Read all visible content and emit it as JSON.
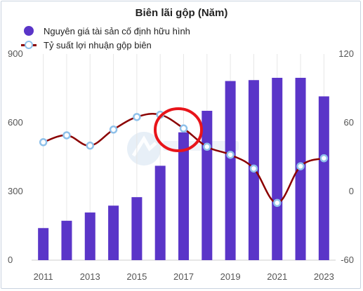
{
  "chart_data": {
    "type": "bar",
    "title": "Biên lãi gộp (Năm)",
    "categories": [
      "2011",
      "2012",
      "2013",
      "2014",
      "2015",
      "2016",
      "2017",
      "2018",
      "2019",
      "2020",
      "2021",
      "2022",
      "2023"
    ],
    "x_tick_labels": [
      "2011",
      "2013",
      "2015",
      "2017",
      "2019",
      "2021",
      "2023"
    ],
    "series": [
      {
        "name": "Nguyên giá tài sản cố định hữu hình",
        "type": "bar",
        "axis": "left",
        "color": "#5a35c8",
        "values": [
          140,
          172,
          208,
          238,
          275,
          412,
          558,
          652,
          782,
          786,
          796,
          796,
          715
        ]
      },
      {
        "name": "Tỷ suất lợi nhuận gộp biên",
        "type": "line",
        "axis": "right",
        "color": "#8b0000",
        "marker_color": "#8fc1ea",
        "values": [
          43,
          49,
          40,
          54,
          65,
          67,
          55,
          39,
          32,
          20,
          -10,
          22,
          29
        ]
      }
    ],
    "y_left": {
      "ylim": [
        0,
        900
      ],
      "ticks": [
        "0",
        "300",
        "600",
        "900"
      ]
    },
    "y_right": {
      "ylim": [
        -60,
        120
      ],
      "ticks": [
        "-60",
        "0",
        "60",
        "120"
      ]
    },
    "grid": true,
    "legend": "top-left"
  }
}
